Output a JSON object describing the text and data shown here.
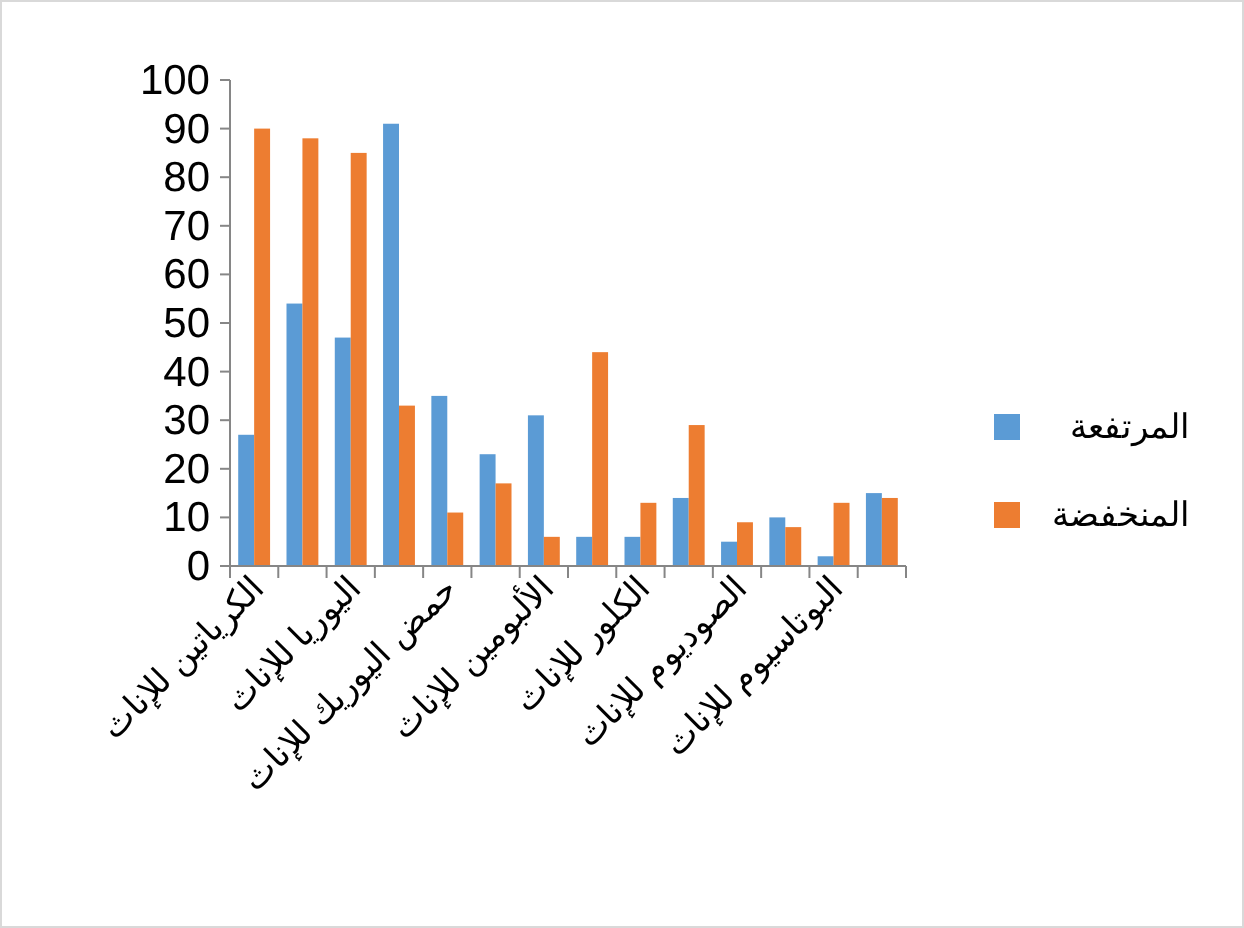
{
  "chart_data": {
    "type": "bar",
    "categories": [
      "الكرياتين للإناث",
      null,
      "اليوريا للإناث",
      null,
      "حمض اليوريك للإناث",
      null,
      "الألبومين للإناث",
      null,
      "الكلور للإناث",
      null,
      "الصوديوم للإناث",
      null,
      "البوتاسيوم للإناث",
      null
    ],
    "series": [
      {
        "name": "المرتفعة",
        "color": "#5b9bd5",
        "values": [
          27,
          54,
          47,
          91,
          35,
          23,
          31,
          6,
          6,
          14,
          5,
          10,
          2,
          15
        ]
      },
      {
        "name": "المنخفضة",
        "color": "#ed7d31",
        "values": [
          90,
          88,
          85,
          33,
          11,
          17,
          6,
          44,
          13,
          29,
          9,
          8,
          13,
          14
        ]
      }
    ],
    "ylim": [
      0,
      100
    ],
    "yticks": [
      0,
      10,
      20,
      30,
      40,
      50,
      60,
      70,
      80,
      90,
      100
    ],
    "legend": "right",
    "grid": false
  }
}
